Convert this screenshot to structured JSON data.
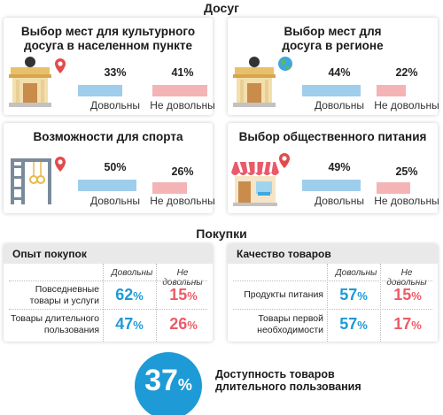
{
  "leisure": {
    "title": "Досуг",
    "cards": [
      {
        "title": "Выбор мест для культурного досуга в населенном пункте",
        "satisfied": {
          "value": "33%",
          "fraction": 0.33,
          "label": "Довольны"
        },
        "unsatisfied": {
          "value": "41%",
          "fraction": 0.41,
          "label": "Не довольны"
        },
        "icon": "theater-building-icon"
      },
      {
        "title": "Выбор мест для досуга в регионе",
        "satisfied": {
          "value": "44%",
          "fraction": 0.44,
          "label": "Довольны"
        },
        "unsatisfied": {
          "value": "22%",
          "fraction": 0.22,
          "label": "Не довольны"
        },
        "icon": "theater-globe-icon"
      },
      {
        "title": "Возможности для спорта",
        "satisfied": {
          "value": "50%",
          "fraction": 0.5,
          "label": "Довольны"
        },
        "unsatisfied": {
          "value": "26%",
          "fraction": 0.26,
          "label": "Не довольны"
        },
        "icon": "playground-icon"
      },
      {
        "title": "Выбор общественного питания",
        "satisfied": {
          "value": "49%",
          "fraction": 0.49,
          "label": "Довольны"
        },
        "unsatisfied": {
          "value": "25%",
          "fraction": 0.25,
          "label": "Не довольны"
        },
        "icon": "cafe-icon"
      }
    ]
  },
  "shopping": {
    "title": "Покупки",
    "tables": [
      {
        "title": "Опыт покупок",
        "col_satisfied": "Довольны",
        "col_unsatisfied": "Не довольны",
        "rows": [
          {
            "label_line1": "Повседневные",
            "label_line2": "товары и услуги",
            "satisfied": "62",
            "unsatisfied": "15"
          },
          {
            "label_line1": "Товары длительного",
            "label_line2": "пользования",
            "satisfied": "47",
            "unsatisfied": "26"
          }
        ]
      },
      {
        "title": "Качество товаров",
        "col_satisfied": "Довольны",
        "col_unsatisfied": "Не довольны",
        "rows": [
          {
            "label_line1": "Продукты питания",
            "label_line2": "",
            "satisfied": "57",
            "unsatisfied": "15"
          },
          {
            "label_line1": "Товары первой",
            "label_line2": "необходимости",
            "satisfied": "57",
            "unsatisfied": "17"
          }
        ]
      }
    ],
    "percent_sign": "%"
  },
  "availability": {
    "value": "37",
    "percent_sign": "%",
    "label_line1": "Доступность товаров",
    "label_line2": "длительного пользования"
  },
  "colors": {
    "satisfied_bar": "#9fcdec",
    "unsatisfied_bar": "#f4b4b6",
    "satisfied_text": "#1e9ad6",
    "unsatisfied_text": "#ee5a67",
    "circle": "#1e9ad6"
  }
}
